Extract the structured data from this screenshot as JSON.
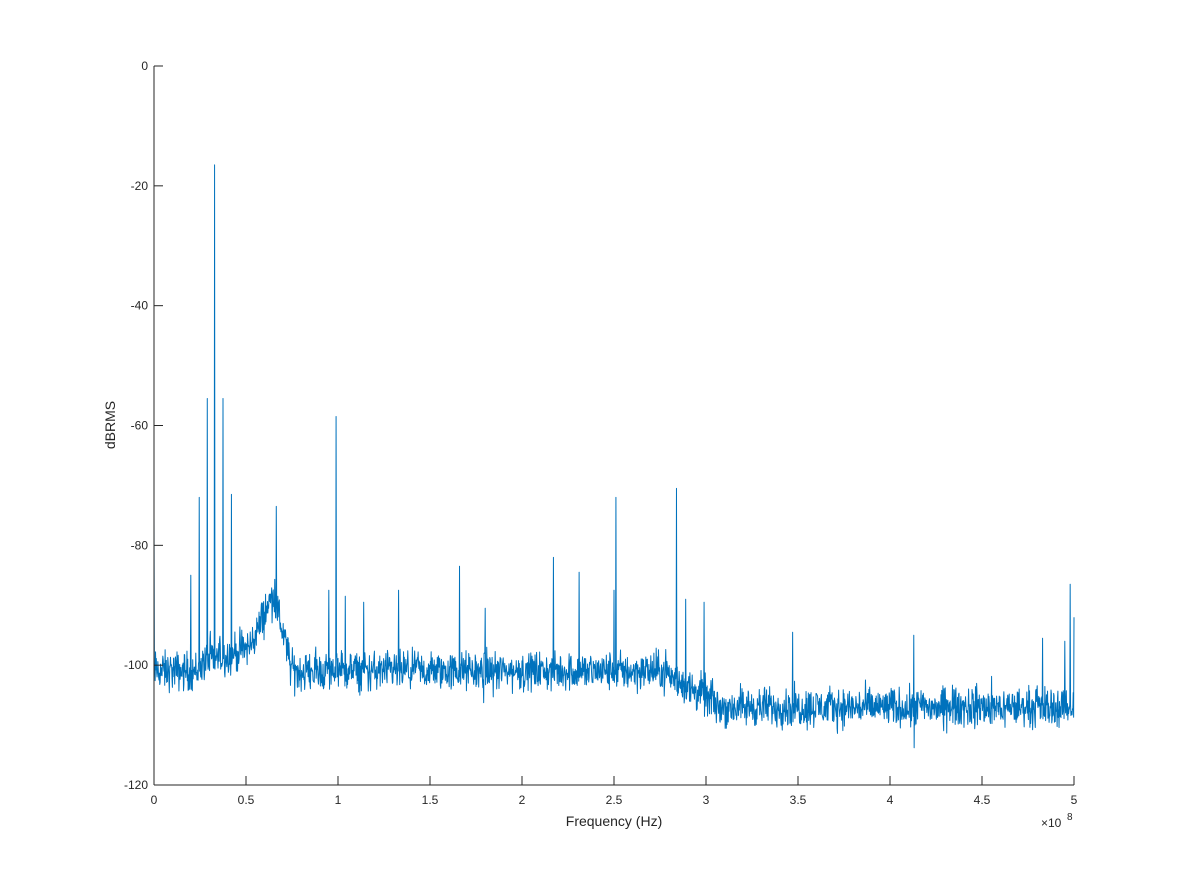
{
  "chart_data": {
    "type": "line",
    "title": "",
    "xlabel": "Frequency (Hz)",
    "ylabel": "dBRMS",
    "x_exponent_label": "×10",
    "x_exponent_power": "8",
    "xlim": [
      0,
      500000000
    ],
    "ylim": [
      -120,
      0
    ],
    "grid": false,
    "x_tick_values": [
      0,
      50000000,
      100000000,
      150000000,
      200000000,
      250000000,
      300000000,
      350000000,
      400000000,
      450000000,
      500000000
    ],
    "x_tick_labels": [
      "0",
      "0.5",
      "1",
      "1.5",
      "2",
      "2.5",
      "3",
      "3.5",
      "4",
      "4.5",
      "5"
    ],
    "y_tick_values": [
      0,
      -20,
      -40,
      -60,
      -80,
      -100,
      -120
    ],
    "y_tick_labels": [
      "0",
      "-20",
      "-40",
      "-60",
      "-80",
      "-100",
      "-120"
    ],
    "colors": {
      "line": "#0072BD",
      "axis": "#262626"
    },
    "noise_floor_segments": [
      {
        "x": [
          0,
          25000000
        ],
        "y": [
          -101,
          -101
        ]
      },
      {
        "x": [
          25000000,
          52000000
        ],
        "y": [
          -100,
          -97
        ]
      },
      {
        "x": [
          52000000,
          65000000
        ],
        "y": [
          -97,
          -88
        ]
      },
      {
        "x": [
          65000000,
          75000000
        ],
        "y": [
          -88,
          -101
        ]
      },
      {
        "x": [
          75000000,
          230000000
        ],
        "y": [
          -101,
          -101
        ]
      },
      {
        "x": [
          230000000,
          280000000
        ],
        "y": [
          -101,
          -101
        ]
      },
      {
        "x": [
          280000000,
          305000000
        ],
        "y": [
          -102,
          -106
        ]
      },
      {
        "x": [
          305000000,
          500000000
        ],
        "y": [
          -107,
          -107
        ]
      }
    ],
    "series": [
      {
        "peaks": [
          {
            "x": 0,
            "y": -75
          },
          {
            "x": 20000000,
            "y": -85
          },
          {
            "x": 24500000,
            "y": -72
          },
          {
            "x": 29000000,
            "y": -55.5
          },
          {
            "x": 33000000,
            "y": -16.5
          },
          {
            "x": 37500000,
            "y": -55.5
          },
          {
            "x": 42000000,
            "y": -71.5
          },
          {
            "x": 66500000,
            "y": -73.5
          },
          {
            "x": 95000000,
            "y": -87.5
          },
          {
            "x": 99000000,
            "y": -58.5
          },
          {
            "x": 104000000,
            "y": -88.5
          },
          {
            "x": 114000000,
            "y": -89.5
          },
          {
            "x": 133000000,
            "y": -87.5
          },
          {
            "x": 166000000,
            "y": -83.5
          },
          {
            "x": 180000000,
            "y": -90.5
          },
          {
            "x": 217000000,
            "y": -82
          },
          {
            "x": 231000000,
            "y": -84.5
          },
          {
            "x": 250000000,
            "y": -87.5
          },
          {
            "x": 251000000,
            "y": -72
          },
          {
            "x": 284000000,
            "y": -70.5
          },
          {
            "x": 289000000,
            "y": -89
          },
          {
            "x": 299000000,
            "y": -89.5
          },
          {
            "x": 347000000,
            "y": -94.5
          },
          {
            "x": 413000000,
            "y": -95
          },
          {
            "x": 483000000,
            "y": -95.5
          },
          {
            "x": 495000000,
            "y": -96
          },
          {
            "x": 498000000,
            "y": -86.5
          },
          {
            "x": 500000000,
            "y": -92
          }
        ]
      }
    ]
  }
}
